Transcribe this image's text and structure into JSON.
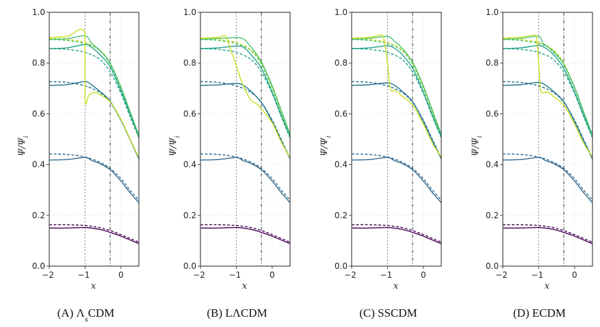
{
  "chart_data": {
    "type": "line",
    "shared": {
      "xlabel": "x",
      "ylabel": "Ψ/Ψ_i",
      "xlim": [
        -2,
        0.5
      ],
      "ylim": [
        0,
        1.0
      ],
      "xticks": [
        -2,
        -1,
        0
      ],
      "xtick_labels": [
        "−2",
        "−1",
        "0"
      ],
      "yticks": [
        0.0,
        0.2,
        0.4,
        0.6,
        0.8,
        1.0
      ],
      "ytick_labels": [
        "0.0",
        "0.2",
        "0.4",
        "0.6",
        "0.8",
        "1.0"
      ],
      "grid": true,
      "vlines": [
        {
          "x": -1.0,
          "style": "dotted"
        },
        {
          "x": -0.3,
          "style": "dashdot"
        }
      ],
      "colors": {
        "k1": "#440154",
        "k2": "#31688e",
        "k3": "#21718c",
        "k4": "#1fa187",
        "k5": "#4ac16d",
        "k6": "#c8e020"
      },
      "dashed_reference_series": [
        {
          "name": "k1 reference",
          "color": "k1",
          "x": [
            -2,
            -1.5,
            -1,
            -0.6,
            -0.3,
            0,
            0.5
          ],
          "y": [
            0.163,
            0.163,
            0.16,
            0.152,
            0.14,
            0.124,
            0.094
          ]
        },
        {
          "name": "k2 reference",
          "color": "k2",
          "x": [
            -2,
            -1.5,
            -1,
            -0.6,
            -0.3,
            0,
            0.25,
            0.5
          ],
          "y": [
            0.442,
            0.44,
            0.43,
            0.41,
            0.385,
            0.345,
            0.3,
            0.26
          ]
        },
        {
          "name": "k3 reference",
          "color": "k3",
          "x": [
            -2,
            -1.5,
            -1,
            -0.6,
            -0.3,
            0,
            0.25,
            0.5
          ],
          "y": [
            0.727,
            0.724,
            0.71,
            0.685,
            0.645,
            0.575,
            0.5,
            0.425
          ]
        },
        {
          "name": "k4 reference",
          "color": "k4",
          "x": [
            -2,
            -1.5,
            -1,
            -0.6,
            -0.3,
            0,
            0.25,
            0.5
          ],
          "y": [
            0.857,
            0.854,
            0.842,
            0.815,
            0.765,
            0.68,
            0.59,
            0.505
          ]
        },
        {
          "name": "k5 reference",
          "color": "k5",
          "x": [
            -2,
            -1.5,
            -1,
            -0.6,
            -0.3,
            0,
            0.25,
            0.5
          ],
          "y": [
            0.893,
            0.889,
            0.877,
            0.85,
            0.795,
            0.7,
            0.605,
            0.51
          ]
        },
        {
          "name": "k6 reference",
          "color": "k6",
          "x": [
            -2,
            -1.5,
            -1,
            -0.6,
            -0.3,
            0,
            0.25,
            0.5
          ],
          "y": [
            0.897,
            0.893,
            0.881,
            0.853,
            0.8,
            0.705,
            0.61,
            0.515
          ]
        }
      ],
      "common_solid_series": [
        {
          "name": "k1",
          "color": "k1",
          "x": [
            -2,
            -1.5,
            -1,
            -0.6,
            -0.3,
            0,
            0.5
          ],
          "y": [
            0.15,
            0.15,
            0.152,
            0.145,
            0.133,
            0.118,
            0.088
          ]
        },
        {
          "name": "k2",
          "color": "k2",
          "x": [
            -2,
            -1.5,
            -1,
            -0.8,
            -0.6,
            -0.3,
            0,
            0.25,
            0.5
          ],
          "y": [
            0.418,
            0.42,
            0.428,
            0.415,
            0.405,
            0.38,
            0.335,
            0.29,
            0.25
          ]
        }
      ]
    },
    "panels": [
      {
        "caption": "(A) ΛsCDM",
        "caption_main": "(A) Λ",
        "caption_sub": "s",
        "caption_tail": "CDM",
        "solid_series": [
          {
            "name": "k3",
            "color": "k3",
            "x": [
              -2,
              -1.5,
              -1,
              -0.8,
              -0.6,
              -0.3,
              0,
              0.25,
              0.5
            ],
            "y": [
              0.712,
              0.715,
              0.727,
              0.712,
              0.69,
              0.65,
              0.575,
              0.5,
              0.422
            ]
          },
          {
            "name": "k4",
            "color": "k4",
            "x": [
              -2,
              -1.5,
              -1,
              -0.8,
              -0.6,
              -0.3,
              0,
              0.25,
              0.5
            ],
            "y": [
              0.857,
              0.86,
              0.873,
              0.86,
              0.835,
              0.785,
              0.69,
              0.6,
              0.51
            ]
          },
          {
            "name": "k5",
            "color": "k5",
            "x": [
              -2,
              -1.5,
              -1,
              -0.8,
              -0.6,
              -0.3,
              0,
              0.25,
              0.5
            ],
            "y": [
              0.893,
              0.896,
              0.907,
              0.875,
              0.852,
              0.8,
              0.705,
              0.61,
              0.515
            ]
          },
          {
            "name": "k6",
            "color": "k6",
            "x": [
              -2,
              -1.5,
              -1.001,
              -1,
              -0.9,
              -0.75,
              -0.6,
              -0.3,
              0,
              0.25,
              0.5
            ],
            "y": [
              0.9,
              0.905,
              0.918,
              0.652,
              0.672,
              0.684,
              0.677,
              0.648,
              0.578,
              0.502,
              0.427
            ]
          }
        ]
      },
      {
        "caption": "(B) LΛCDM",
        "caption_main": "(B) LΛCDM",
        "caption_sub": "",
        "caption_tail": "",
        "solid_series": [
          {
            "name": "k3",
            "color": "k3",
            "x": [
              -2,
              -1.5,
              -1,
              -0.8,
              -0.6,
              -0.3,
              0,
              0.25,
              0.5
            ],
            "y": [
              0.712,
              0.714,
              0.72,
              0.712,
              0.69,
              0.645,
              0.57,
              0.495,
              0.422
            ]
          },
          {
            "name": "k4",
            "color": "k4",
            "x": [
              -2,
              -1.5,
              -1,
              -0.8,
              -0.6,
              -0.3,
              0,
              0.25,
              0.5
            ],
            "y": [
              0.857,
              0.86,
              0.867,
              0.862,
              0.835,
              0.78,
              0.685,
              0.595,
              0.51
            ]
          },
          {
            "name": "k5",
            "color": "k5",
            "x": [
              -2,
              -1.5,
              -1,
              -0.8,
              -0.6,
              -0.3,
              0,
              0.25,
              0.5
            ],
            "y": [
              0.893,
              0.897,
              0.9,
              0.895,
              0.865,
              0.805,
              0.71,
              0.615,
              0.52
            ]
          },
          {
            "name": "k6",
            "color": "k6",
            "x": [
              -2,
              -1.5,
              -1.3,
              -1.2,
              -1.1,
              -1.0,
              -0.9,
              -0.8,
              -0.7,
              -0.6,
              -0.5,
              -0.4,
              -0.3,
              0,
              0.25,
              0.5
            ],
            "y": [
              0.898,
              0.902,
              0.907,
              0.87,
              0.83,
              0.79,
              0.745,
              0.71,
              0.68,
              0.655,
              0.645,
              0.635,
              0.62,
              0.565,
              0.49,
              0.427
            ]
          }
        ]
      },
      {
        "caption": "(C) SSCDM",
        "caption_main": "(C) SSCDM",
        "caption_sub": "",
        "caption_tail": "",
        "solid_series": [
          {
            "name": "k3",
            "color": "k3",
            "x": [
              -2,
              -1.5,
              -1,
              -0.8,
              -0.6,
              -0.3,
              0,
              0.25,
              0.5
            ],
            "y": [
              0.712,
              0.715,
              0.722,
              0.712,
              0.69,
              0.648,
              0.57,
              0.495,
              0.422
            ]
          },
          {
            "name": "k4",
            "color": "k4",
            "x": [
              -2,
              -1.5,
              -1,
              -0.8,
              -0.6,
              -0.3,
              0,
              0.25,
              0.5
            ],
            "y": [
              0.857,
              0.86,
              0.868,
              0.858,
              0.835,
              0.78,
              0.685,
              0.595,
              0.51
            ]
          },
          {
            "name": "k5",
            "color": "k5",
            "x": [
              -2,
              -1.5,
              -1,
              -0.8,
              -0.6,
              -0.3,
              0,
              0.25,
              0.5
            ],
            "y": [
              0.893,
              0.897,
              0.905,
              0.885,
              0.86,
              0.805,
              0.71,
              0.615,
              0.52
            ]
          },
          {
            "name": "k6",
            "color": "k6",
            "x": [
              -2,
              -1.5,
              -1.2,
              -1.1,
              -1.0,
              -0.95,
              -0.9,
              -0.8,
              -0.7,
              -0.6,
              -0.3,
              0,
              0.25,
              0.5
            ],
            "y": [
              0.898,
              0.902,
              0.91,
              0.895,
              0.8,
              0.72,
              0.69,
              0.692,
              0.683,
              0.67,
              0.635,
              0.56,
              0.485,
              0.43
            ]
          }
        ]
      },
      {
        "caption": "(D) ECDM",
        "caption_main": "(D) ECDM",
        "caption_sub": "",
        "caption_tail": "",
        "solid_series": [
          {
            "name": "k3",
            "color": "k3",
            "x": [
              -2,
              -1.5,
              -1,
              -0.8,
              -0.6,
              -0.3,
              0,
              0.25,
              0.5
            ],
            "y": [
              0.712,
              0.715,
              0.724,
              0.712,
              0.69,
              0.648,
              0.57,
              0.495,
              0.422
            ]
          },
          {
            "name": "k4",
            "color": "k4",
            "x": [
              -2,
              -1.5,
              -1,
              -0.8,
              -0.6,
              -0.3,
              0,
              0.25,
              0.5
            ],
            "y": [
              0.857,
              0.86,
              0.869,
              0.858,
              0.835,
              0.78,
              0.685,
              0.595,
              0.51
            ]
          },
          {
            "name": "k5",
            "color": "k5",
            "x": [
              -2,
              -1.5,
              -1,
              -0.9,
              -0.8,
              -0.6,
              -0.3,
              0,
              0.25,
              0.5
            ],
            "y": [
              0.893,
              0.897,
              0.905,
              0.88,
              0.87,
              0.845,
              0.795,
              0.705,
              0.61,
              0.515
            ]
          },
          {
            "name": "k6",
            "color": "k6",
            "x": [
              -2,
              -1.5,
              -1.1,
              -1.05,
              -1.0,
              -0.95,
              -0.9,
              -0.8,
              -0.7,
              -0.6,
              -0.3,
              0,
              0.25,
              0.5
            ],
            "y": [
              0.898,
              0.902,
              0.91,
              0.89,
              0.8,
              0.7,
              0.683,
              0.686,
              0.683,
              0.67,
              0.635,
              0.56,
              0.485,
              0.43
            ]
          }
        ]
      }
    ]
  }
}
